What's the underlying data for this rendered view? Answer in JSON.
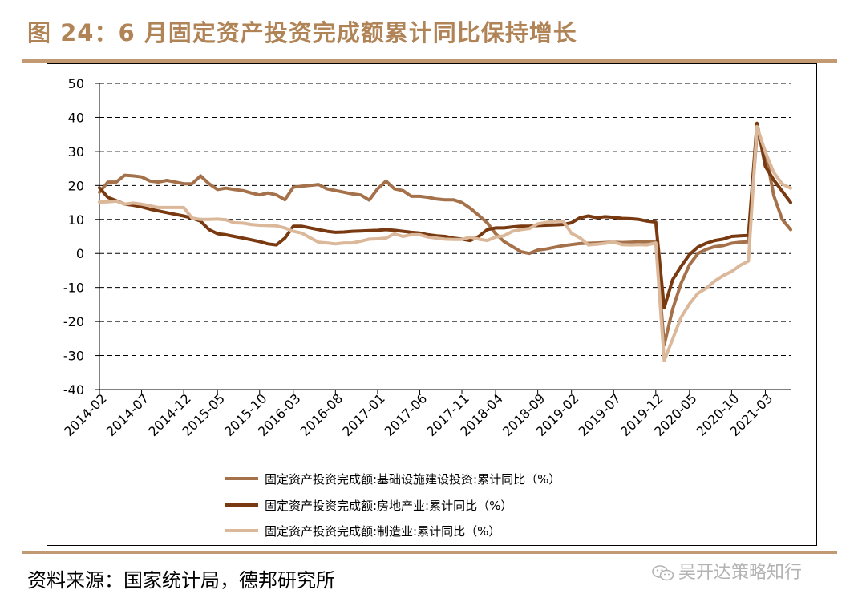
{
  "title": "图 24：6 月固定资产投资完成额累计同比保持增长",
  "source": "资料来源：国家统计局，德邦研究所",
  "watermark": "吴开达策略知行",
  "chart_data": {
    "type": "line",
    "title": "图 24：6 月固定资产投资完成额累计同比保持增长",
    "xlabel": "",
    "ylabel": "",
    "ylim": [
      -40,
      50
    ],
    "yticks": [
      50,
      40,
      30,
      20,
      10,
      0,
      -10,
      -20,
      -30,
      -40
    ],
    "grid": "horizontal-dashed",
    "legend_position": "bottom-center",
    "x": [
      "2014-02",
      "2014-03",
      "2014-04",
      "2014-05",
      "2014-06",
      "2014-07",
      "2014-08",
      "2014-09",
      "2014-10",
      "2014-11",
      "2014-12",
      "2015-02",
      "2015-03",
      "2015-04",
      "2015-05",
      "2015-06",
      "2015-07",
      "2015-08",
      "2015-09",
      "2015-10",
      "2015-11",
      "2015-12",
      "2016-02",
      "2016-03",
      "2016-04",
      "2016-05",
      "2016-06",
      "2016-07",
      "2016-08",
      "2016-09",
      "2016-10",
      "2016-11",
      "2016-12",
      "2017-01",
      "2017-02",
      "2017-03",
      "2017-04",
      "2017-05",
      "2017-06",
      "2017-07",
      "2017-08",
      "2017-09",
      "2017-10",
      "2017-11",
      "2017-12",
      "2018-02",
      "2018-03",
      "2018-04",
      "2018-05",
      "2018-06",
      "2018-07",
      "2018-08",
      "2018-09",
      "2018-10",
      "2018-11",
      "2018-12",
      "2019-02",
      "2019-03",
      "2019-04",
      "2019-05",
      "2019-06",
      "2019-07",
      "2019-08",
      "2019-09",
      "2019-10",
      "2019-11",
      "2019-12",
      "2020-02",
      "2020-03",
      "2020-04",
      "2020-05",
      "2020-06",
      "2020-07",
      "2020-08",
      "2020-09",
      "2020-10",
      "2020-11",
      "2020-12",
      "2021-02",
      "2021-03",
      "2021-04",
      "2021-05",
      "2021-06"
    ],
    "xtick_labels": [
      "2014-02",
      "2014-07",
      "2014-12",
      "2015-05",
      "2015-10",
      "2016-03",
      "2016-08",
      "2017-01",
      "2017-06",
      "2017-11",
      "2018-04",
      "2018-09",
      "2019-02",
      "2019-07",
      "2019-12",
      "2020-05",
      "2020-10",
      "2021-03"
    ],
    "series": [
      {
        "name": "固定资产投资完成额:基础设施建设投资:累计同比（%）",
        "color": "#a4714a",
        "values": [
          18.0,
          21.0,
          21.0,
          23.0,
          22.8,
          22.5,
          21.3,
          21.0,
          21.5,
          21.0,
          20.5,
          20.5,
          22.8,
          20.5,
          18.8,
          19.2,
          18.8,
          18.5,
          17.8,
          17.2,
          17.8,
          17.2,
          15.8,
          19.5,
          19.8,
          20.0,
          20.3,
          19.0,
          18.5,
          18.0,
          17.5,
          17.2,
          15.7,
          19.0,
          21.3,
          19.0,
          18.5,
          16.8,
          16.8,
          16.5,
          16.0,
          15.8,
          15.8,
          15.0,
          13.3,
          11.2,
          9.0,
          5.8,
          3.5,
          2.0,
          0.5,
          0.0,
          1.0,
          1.3,
          1.8,
          2.3,
          2.6,
          2.9,
          3.0,
          3.1,
          3.2,
          3.3,
          3.2,
          3.3,
          3.4,
          3.5,
          3.6,
          -26.9,
          -16.4,
          -8.8,
          -3.3,
          0.0,
          1.2,
          2.0,
          2.3,
          3.0,
          3.3,
          3.4,
          35.0,
          30.0,
          17.0,
          10.0,
          7.0
        ]
      },
      {
        "name": "固定资产投资完成额:房地产业:累计同比（%）",
        "color": "#7a3a11",
        "values": [
          19.3,
          16.5,
          15.5,
          14.5,
          14.2,
          13.7,
          13.0,
          12.5,
          12.0,
          11.5,
          11.0,
          10.4,
          9.5,
          7.0,
          5.8,
          5.5,
          5.0,
          4.5,
          4.0,
          3.5,
          2.8,
          2.5,
          4.5,
          8.0,
          8.0,
          7.5,
          7.0,
          6.5,
          6.2,
          6.3,
          6.5,
          6.6,
          6.7,
          6.8,
          7.0,
          6.8,
          6.5,
          6.2,
          6.0,
          5.5,
          5.2,
          5.0,
          4.5,
          4.2,
          3.8,
          5.0,
          7.0,
          7.5,
          7.5,
          7.8,
          8.0,
          8.0,
          8.2,
          8.3,
          8.4,
          8.5,
          9.0,
          10.5,
          11.0,
          10.5,
          10.8,
          10.6,
          10.3,
          10.2,
          10.0,
          9.5,
          9.2,
          -16.0,
          -7.7,
          -3.8,
          -0.3,
          1.9,
          3.0,
          3.8,
          4.2,
          5.0,
          5.2,
          5.3,
          38.3,
          25.6,
          21.6,
          18.3,
          15.0
        ]
      },
      {
        "name": "固定资产投资完成额:制造业:累计同比（%）",
        "color": "#dcb89b",
        "values": [
          15.1,
          15.2,
          15.4,
          14.5,
          14.8,
          14.5,
          14.0,
          13.5,
          13.5,
          13.5,
          13.5,
          10.4,
          10.0,
          10.0,
          10.1,
          9.9,
          9.0,
          8.9,
          8.5,
          8.3,
          8.2,
          8.1,
          7.5,
          6.5,
          6.0,
          4.6,
          3.3,
          3.1,
          2.8,
          3.1,
          3.1,
          3.6,
          4.2,
          4.3,
          4.5,
          5.8,
          5.0,
          5.5,
          5.5,
          4.8,
          4.5,
          4.2,
          4.1,
          4.1,
          4.8,
          4.2,
          3.8,
          4.8,
          5.2,
          6.5,
          7.0,
          7.3,
          8.7,
          9.1,
          9.5,
          9.5,
          5.9,
          4.6,
          2.5,
          2.7,
          3.0,
          3.3,
          2.6,
          2.5,
          2.6,
          2.5,
          3.1,
          -31.5,
          -25.2,
          -18.8,
          -14.8,
          -11.7,
          -10.2,
          -8.1,
          -6.5,
          -5.3,
          -3.5,
          -2.2,
          37.3,
          29.8,
          23.8,
          20.4,
          19.2
        ]
      }
    ]
  }
}
